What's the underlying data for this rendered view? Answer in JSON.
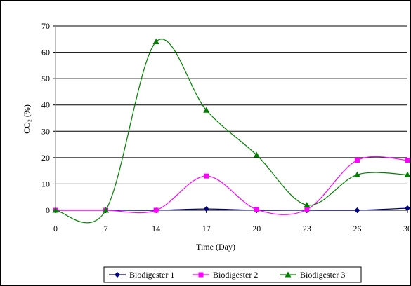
{
  "chart_data": {
    "type": "line",
    "x": [
      0,
      7,
      14,
      17,
      20,
      23,
      26,
      30
    ],
    "x_tick_labels": [
      "0",
      "7",
      "14",
      "17",
      "20",
      "23",
      "26",
      "30"
    ],
    "series": [
      {
        "name": "Biodigester 1",
        "color": "#000080",
        "marker": "diamond",
        "values": [
          0,
          0,
          0,
          0.5,
          0,
          0,
          0,
          0.8
        ]
      },
      {
        "name": "Biodigester 2",
        "color": "#ff00ff",
        "marker": "square",
        "values": [
          0,
          0,
          0,
          13,
          0.3,
          0.3,
          19,
          19
        ]
      },
      {
        "name": "Biodigester 3",
        "color": "#008000",
        "marker": "triangle",
        "values": [
          0,
          0,
          64,
          38,
          21,
          2,
          13.5,
          13.5
        ]
      }
    ],
    "y_ticks": [
      0,
      10,
      20,
      30,
      40,
      50,
      60,
      70
    ],
    "ylim": [
      0,
      70
    ],
    "ylabel": "CO₂ (%)",
    "xlabel": "Time (Day)",
    "grid": "horizontal",
    "legend_position": "bottom"
  }
}
